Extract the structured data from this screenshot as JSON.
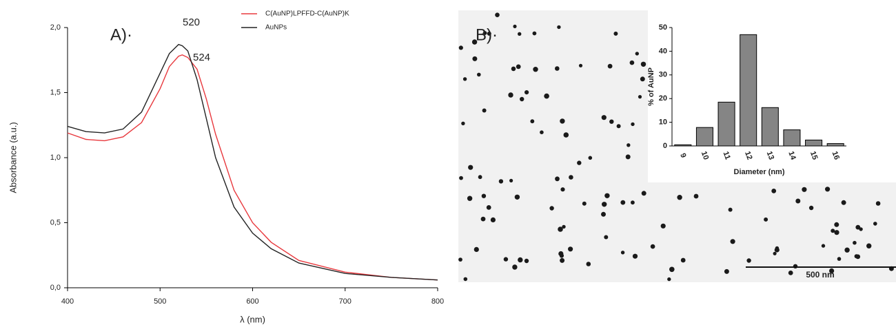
{
  "chart_data": [
    {
      "type": "line",
      "panel_label": "A)·",
      "xlabel": "λ (nm)",
      "ylabel": "Absorbance (a.u.)",
      "x": [
        400,
        420,
        440,
        460,
        480,
        500,
        510,
        520,
        524,
        530,
        540,
        550,
        560,
        580,
        600,
        620,
        650,
        700,
        750,
        800
      ],
      "series": [
        {
          "name": "C(AuNP)LPFFD-C(AuNP)K",
          "color": "#e8383d",
          "values": [
            1.19,
            1.14,
            1.13,
            1.16,
            1.27,
            1.53,
            1.7,
            1.78,
            1.79,
            1.77,
            1.68,
            1.45,
            1.18,
            0.75,
            0.5,
            0.35,
            0.21,
            0.12,
            0.08,
            0.06
          ]
        },
        {
          "name": "AuNPs",
          "color": "#222222",
          "values": [
            1.24,
            1.2,
            1.19,
            1.22,
            1.35,
            1.65,
            1.8,
            1.87,
            1.86,
            1.82,
            1.6,
            1.3,
            1.0,
            0.62,
            0.42,
            0.3,
            0.19,
            0.11,
            0.08,
            0.06
          ]
        }
      ],
      "annotations": [
        "520",
        "524"
      ],
      "xlim": [
        400,
        800
      ],
      "xticks": [
        400,
        500,
        600,
        700,
        800
      ],
      "ylim": [
        0,
        2
      ],
      "yticks": [
        {
          "value": 0,
          "label": "0,0"
        },
        {
          "value": 0.5,
          "label": "0,5"
        },
        {
          "value": 1,
          "label": "1,0"
        },
        {
          "value": 1.5,
          "label": "1,5"
        },
        {
          "value": 2,
          "label": "2,0"
        }
      ],
      "legend": "top-right"
    },
    {
      "type": "bar",
      "panel_label": "B)·",
      "scale_bar": "500 nm",
      "xlabel": "Diameter (nm)",
      "ylabel": "% of AuNP",
      "categories": [
        "9",
        "10",
        "11",
        "12",
        "13",
        "14",
        "15",
        "16"
      ],
      "values": [
        0.5,
        7.8,
        18.5,
        47,
        16.2,
        6.8,
        2.5,
        1
      ],
      "color": "#858585",
      "ylim": [
        0,
        50
      ],
      "yticks": [
        0,
        10,
        20,
        30,
        40,
        50
      ]
    }
  ]
}
